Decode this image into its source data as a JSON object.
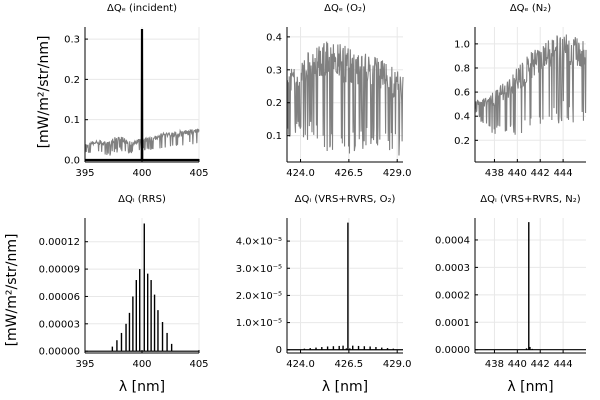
{
  "figure": {
    "ylabel": "[mW/m²/str/nm]",
    "xlabel": "λ [nm]"
  },
  "chart_data": [
    {
      "id": "p1",
      "type": "line",
      "title": "ΔQₑ (incident)",
      "xlabel": "",
      "ylabel": "[mW/m²/str/nm]",
      "xlim": [
        395,
        405
      ],
      "ylim": [
        -0.005,
        0.33
      ],
      "xticks": [
        395,
        400,
        405
      ],
      "xtick_labels": [
        "395",
        "400",
        "405"
      ],
      "yticks": [
        0.0,
        0.1,
        0.2,
        0.3
      ],
      "ytick_labels": [
        "0.0",
        "0.1",
        "0.2",
        "0.3"
      ],
      "grid": true,
      "series": [
        {
          "color": "#808080",
          "style": "noisy-band",
          "x": [
            395,
            396,
            397,
            398,
            399,
            400,
            401,
            402,
            403,
            404,
            405
          ],
          "y_low": [
            0.015,
            0.018,
            0.008,
            0.02,
            0.012,
            0.022,
            0.025,
            0.03,
            0.03,
            0.035,
            0.04
          ],
          "y_high": [
            0.04,
            0.05,
            0.045,
            0.065,
            0.045,
            0.055,
            0.06,
            0.07,
            0.072,
            0.075,
            0.08
          ]
        },
        {
          "color": "#000000",
          "style": "spike",
          "x": [
            395,
            399.98,
            400,
            400.02,
            405
          ],
          "y": [
            0.0,
            0.0,
            0.325,
            0.0,
            0.0
          ]
        }
      ]
    },
    {
      "id": "p2",
      "type": "line",
      "title": "ΔQₑ (O₂)",
      "xlabel": "",
      "ylabel": "",
      "xlim": [
        423.3,
        429.3
      ],
      "ylim": [
        0.02,
        0.43
      ],
      "xticks": [
        424.0,
        426.5,
        429.0
      ],
      "xtick_labels": [
        "424.0",
        "426.5",
        "429.0"
      ],
      "yticks": [
        0.1,
        0.2,
        0.3,
        0.4
      ],
      "ytick_labels": [
        "0.1",
        "0.2",
        "0.3",
        "0.4"
      ],
      "grid": true,
      "series": [
        {
          "color": "#808080",
          "style": "noisy-band",
          "x": [
            423.3,
            424.0,
            424.5,
            425.0,
            425.5,
            426.0,
            426.5,
            427.0,
            427.5,
            428.0,
            428.5,
            429.0,
            429.3
          ],
          "y_low": [
            0.1,
            0.09,
            0.07,
            0.06,
            0.05,
            0.05,
            0.04,
            0.05,
            0.06,
            0.07,
            0.05,
            0.04,
            0.03
          ],
          "y_high": [
            0.3,
            0.33,
            0.36,
            0.38,
            0.39,
            0.38,
            0.37,
            0.36,
            0.36,
            0.34,
            0.32,
            0.3,
            0.28
          ]
        }
      ]
    },
    {
      "id": "p3",
      "type": "line",
      "title": "ΔQₑ (N₂)",
      "xlabel": "",
      "ylabel": "",
      "xlim": [
        436.3,
        446.0
      ],
      "ylim": [
        0.02,
        1.14
      ],
      "xticks": [
        438,
        440,
        442,
        444
      ],
      "xtick_labels": [
        "438",
        "440",
        "442",
        "444"
      ],
      "yticks": [
        0.2,
        0.4,
        0.6,
        0.8,
        1.0
      ],
      "ytick_labels": [
        "0.2",
        "0.4",
        "0.6",
        "0.8",
        "1.0"
      ],
      "grid": true,
      "series": [
        {
          "color": "#808080",
          "style": "noisy-band",
          "x": [
            436.3,
            437,
            438,
            439,
            440,
            441,
            442,
            443,
            444,
            445,
            446
          ],
          "y_low": [
            0.45,
            0.3,
            0.25,
            0.2,
            0.2,
            0.25,
            0.3,
            0.3,
            0.35,
            0.3,
            0.3
          ],
          "y_high": [
            0.55,
            0.55,
            0.62,
            0.72,
            0.82,
            0.92,
            1.0,
            1.08,
            1.1,
            1.08,
            1.05
          ]
        }
      ]
    },
    {
      "id": "p4",
      "type": "line",
      "title": "ΔQᵢ (RRS)",
      "xlabel": "λ [nm]",
      "ylabel": "[mW/m²/str/nm]",
      "xlim": [
        395,
        405
      ],
      "ylim": [
        -2e-06,
        0.000146
      ],
      "xticks": [
        395,
        400,
        405
      ],
      "xtick_labels": [
        "395",
        "400",
        "405"
      ],
      "yticks": [
        0.0,
        3e-05,
        6e-05,
        9e-05,
        0.00012
      ],
      "ytick_labels": [
        "0.00000",
        "0.00003",
        "0.00006",
        "0.00009",
        "0.00012"
      ],
      "grid": true,
      "series": [
        {
          "color": "#000000",
          "style": "lines",
          "lines_x": [
            397.4,
            397.8,
            398.2,
            398.6,
            398.9,
            399.2,
            399.5,
            399.8,
            400.2,
            400.5,
            400.8,
            401.1,
            401.4,
            401.8,
            402.2,
            402.6
          ],
          "lines_y": [
            5e-06,
            1.2e-05,
            2e-05,
            3e-05,
            4.2e-05,
            6e-05,
            7.8e-05,
            9e-05,
            0.00014,
            8.5e-05,
            7.8e-05,
            6.2e-05,
            4.5e-05,
            3.2e-05,
            2e-05,
            8e-06
          ]
        }
      ]
    },
    {
      "id": "p5",
      "type": "line",
      "title": "ΔQᵢ (VRS+RVRS, O₂)",
      "xlabel": "λ [nm]",
      "ylabel": "",
      "xlim": [
        423.3,
        429.3
      ],
      "ylim": [
        -1.2e-06,
        4.85e-05
      ],
      "xticks": [
        424.0,
        426.5,
        429.0
      ],
      "xtick_labels": [
        "424.0",
        "426.5",
        "429.0"
      ],
      "yticks": [
        0,
        1e-05,
        2e-05,
        3e-05,
        4e-05
      ],
      "ytick_labels": [
        "0",
        "1.0×10⁻⁵",
        "2.0×10⁻⁵",
        "3.0×10⁻⁵",
        "4.0×10⁻⁵"
      ],
      "grid": true,
      "series": [
        {
          "color": "#000000",
          "style": "lines",
          "lines_x": [
            424.2,
            424.5,
            424.8,
            425.1,
            425.4,
            425.7,
            426.0,
            426.2,
            426.37,
            426.45,
            426.55,
            426.7,
            427.0,
            427.3,
            427.6,
            427.9,
            428.2,
            428.5,
            428.8
          ],
          "lines_y": [
            4e-07,
            6e-07,
            8e-07,
            1e-06,
            1.2e-06,
            1.3e-06,
            1.4e-06,
            1.5e-06,
            5e-07,
            4.68e-05,
            5e-07,
            1.5e-06,
            1.4e-06,
            1.3e-06,
            1.2e-06,
            1e-06,
            8e-07,
            6e-07,
            4e-07
          ]
        }
      ]
    },
    {
      "id": "p6",
      "type": "line",
      "title": "ΔQᵢ (VRS+RVRS, N₂)",
      "xlabel": "λ [nm]",
      "ylabel": "",
      "xlim": [
        436.3,
        446.0
      ],
      "ylim": [
        -1.2e-05,
        0.00048
      ],
      "xticks": [
        438,
        440,
        442,
        444
      ],
      "xtick_labels": [
        "438",
        "440",
        "442",
        "444"
      ],
      "yticks": [
        0.0,
        0.0001,
        0.0002,
        0.0003,
        0.0004
      ],
      "ytick_labels": [
        "0.0000",
        "0.0001",
        "0.0002",
        "0.0003",
        "0.0004"
      ],
      "grid": true,
      "series": [
        {
          "color": "#000000",
          "style": "lines",
          "lines_x": [
            440.8,
            441.0,
            441.1,
            441.3
          ],
          "lines_y": [
            5e-06,
            0.000465,
            1e-05,
            3e-06
          ]
        }
      ]
    }
  ]
}
